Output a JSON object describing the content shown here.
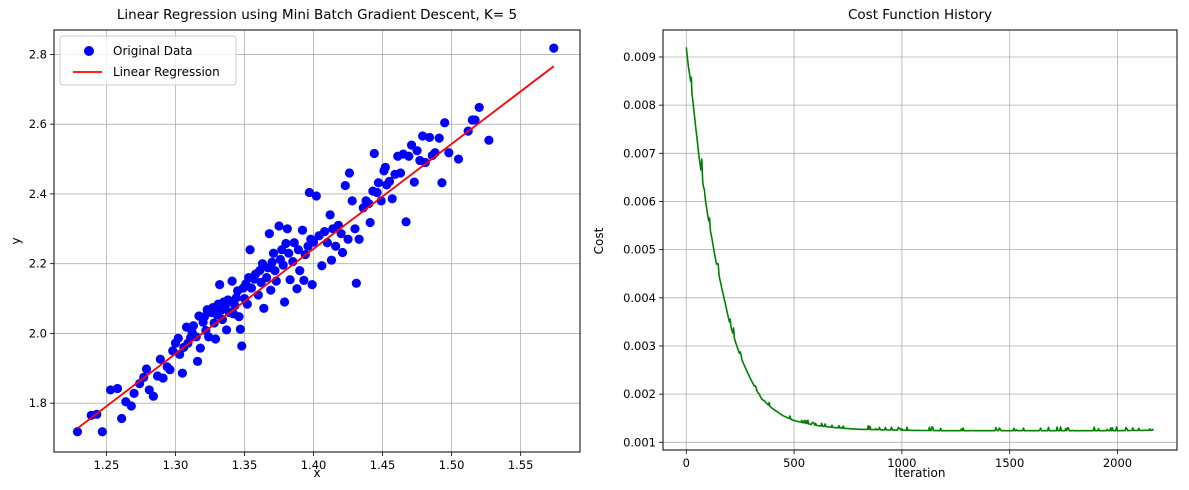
{
  "chart_data": [
    {
      "type": "scatter",
      "title": "Linear Regression using Mini Batch Gradient Descent, K= 5",
      "xlabel": "x",
      "ylabel": "y",
      "xlim": [
        1.212,
        1.593
      ],
      "ylim": [
        1.66,
        2.87
      ],
      "xticks": [
        "1.25",
        "1.30",
        "1.35",
        "1.40",
        "1.45",
        "1.50",
        "1.55"
      ],
      "yticks": [
        "1.8",
        "2.0",
        "2.2",
        "2.4",
        "2.6",
        "2.8"
      ],
      "grid": true,
      "legend_position": "upper left",
      "legend": [
        "Original Data",
        "Linear Regression"
      ],
      "series": [
        {
          "name": "Original Data",
          "kind": "scatter",
          "color": "#0000ff",
          "points": [
            [
              1.229,
              1.718
            ],
            [
              1.247,
              1.718
            ],
            [
              1.243,
              1.768
            ],
            [
              1.239,
              1.765
            ],
            [
              1.253,
              1.838
            ],
            [
              1.258,
              1.842
            ],
            [
              1.261,
              1.756
            ],
            [
              1.264,
              1.804
            ],
            [
              1.268,
              1.792
            ],
            [
              1.27,
              1.828
            ],
            [
              1.274,
              1.856
            ],
            [
              1.277,
              1.874
            ],
            [
              1.279,
              1.898
            ],
            [
              1.281,
              1.838
            ],
            [
              1.284,
              1.82
            ],
            [
              1.287,
              1.878
            ],
            [
              1.289,
              1.926
            ],
            [
              1.291,
              1.872
            ],
            [
              1.294,
              1.904
            ],
            [
              1.296,
              1.896
            ],
            [
              1.298,
              1.95
            ],
            [
              1.3,
              1.972
            ],
            [
              1.302,
              1.986
            ],
            [
              1.303,
              1.94
            ],
            [
              1.305,
              1.886
            ],
            [
              1.306,
              1.96
            ],
            [
              1.308,
              2.018
            ],
            [
              1.309,
              1.972
            ],
            [
              1.311,
              1.988
            ],
            [
              1.312,
              2.004
            ],
            [
              1.313,
              2.022
            ],
            [
              1.315,
              1.99
            ],
            [
              1.316,
              1.92
            ],
            [
              1.317,
              2.05
            ],
            [
              1.318,
              1.958
            ],
            [
              1.32,
              2.032
            ],
            [
              1.321,
              2.048
            ],
            [
              1.322,
              2.008
            ],
            [
              1.323,
              2.068
            ],
            [
              1.324,
              1.99
            ],
            [
              1.326,
              2.06
            ],
            [
              1.327,
              2.074
            ],
            [
              1.328,
              2.03
            ],
            [
              1.329,
              1.984
            ],
            [
              1.33,
              2.054
            ],
            [
              1.331,
              2.084
            ],
            [
              1.332,
              2.14
            ],
            [
              1.333,
              2.066
            ],
            [
              1.334,
              2.04
            ],
            [
              1.335,
              2.09
            ],
            [
              1.336,
              2.078
            ],
            [
              1.337,
              2.01
            ],
            [
              1.338,
              2.096
            ],
            [
              1.339,
              2.06
            ],
            [
              1.34,
              2.092
            ],
            [
              1.341,
              2.15
            ],
            [
              1.342,
              2.056
            ],
            [
              1.343,
              2.08
            ],
            [
              1.344,
              2.102
            ],
            [
              1.345,
              2.122
            ],
            [
              1.346,
              2.048
            ],
            [
              1.347,
              2.012
            ],
            [
              1.348,
              1.964
            ],
            [
              1.349,
              2.13
            ],
            [
              1.35,
              2.1
            ],
            [
              1.351,
              2.142
            ],
            [
              1.352,
              2.084
            ],
            [
              1.353,
              2.16
            ],
            [
              1.354,
              2.24
            ],
            [
              1.355,
              2.13
            ],
            [
              1.357,
              2.156
            ],
            [
              1.358,
              2.17
            ],
            [
              1.36,
              2.11
            ],
            [
              1.361,
              2.18
            ],
            [
              1.362,
              2.146
            ],
            [
              1.363,
              2.2
            ],
            [
              1.364,
              2.072
            ],
            [
              1.366,
              2.16
            ],
            [
              1.367,
              2.188
            ],
            [
              1.368,
              2.286
            ],
            [
              1.369,
              2.124
            ],
            [
              1.37,
              2.204
            ],
            [
              1.371,
              2.23
            ],
            [
              1.372,
              2.18
            ],
            [
              1.373,
              2.15
            ],
            [
              1.375,
              2.308
            ],
            [
              1.376,
              2.212
            ],
            [
              1.377,
              2.24
            ],
            [
              1.378,
              2.196
            ],
            [
              1.379,
              2.09
            ],
            [
              1.38,
              2.258
            ],
            [
              1.381,
              2.3
            ],
            [
              1.382,
              2.23
            ],
            [
              1.383,
              2.154
            ],
            [
              1.385,
              2.206
            ],
            [
              1.386,
              2.26
            ],
            [
              1.388,
              2.128
            ],
            [
              1.389,
              2.24
            ],
            [
              1.39,
              2.18
            ],
            [
              1.392,
              2.296
            ],
            [
              1.393,
              2.152
            ],
            [
              1.394,
              2.226
            ],
            [
              1.396,
              2.25
            ],
            [
              1.397,
              2.404
            ],
            [
              1.398,
              2.27
            ],
            [
              1.399,
              2.14
            ],
            [
              1.4,
              2.262
            ],
            [
              1.402,
              2.394
            ],
            [
              1.404,
              2.28
            ],
            [
              1.406,
              2.194
            ],
            [
              1.408,
              2.292
            ],
            [
              1.41,
              2.26
            ],
            [
              1.412,
              2.34
            ],
            [
              1.413,
              2.21
            ],
            [
              1.414,
              2.3
            ],
            [
              1.416,
              2.25
            ],
            [
              1.418,
              2.31
            ],
            [
              1.42,
              2.286
            ],
            [
              1.421,
              2.232
            ],
            [
              1.423,
              2.424
            ],
            [
              1.425,
              2.27
            ],
            [
              1.426,
              2.46
            ],
            [
              1.428,
              2.38
            ],
            [
              1.43,
              2.3
            ],
            [
              1.431,
              2.144
            ],
            [
              1.433,
              2.27
            ],
            [
              1.436,
              2.36
            ],
            [
              1.438,
              2.38
            ],
            [
              1.44,
              2.372
            ],
            [
              1.441,
              2.318
            ],
            [
              1.443,
              2.408
            ],
            [
              1.444,
              2.516
            ],
            [
              1.446,
              2.404
            ],
            [
              1.447,
              2.432
            ],
            [
              1.449,
              2.38
            ],
            [
              1.451,
              2.466
            ],
            [
              1.452,
              2.476
            ],
            [
              1.453,
              2.426
            ],
            [
              1.455,
              2.436
            ],
            [
              1.457,
              2.386
            ],
            [
              1.459,
              2.456
            ],
            [
              1.461,
              2.508
            ],
            [
              1.463,
              2.46
            ],
            [
              1.465,
              2.514
            ],
            [
              1.467,
              2.32
            ],
            [
              1.469,
              2.508
            ],
            [
              1.471,
              2.54
            ],
            [
              1.473,
              2.434
            ],
            [
              1.475,
              2.524
            ],
            [
              1.477,
              2.496
            ],
            [
              1.479,
              2.566
            ],
            [
              1.481,
              2.49
            ],
            [
              1.484,
              2.562
            ],
            [
              1.486,
              2.51
            ],
            [
              1.488,
              2.518
            ],
            [
              1.491,
              2.56
            ],
            [
              1.493,
              2.432
            ],
            [
              1.495,
              2.604
            ],
            [
              1.498,
              2.518
            ],
            [
              1.505,
              2.5
            ],
            [
              1.512,
              2.58
            ],
            [
              1.515,
              2.612
            ],
            [
              1.517,
              2.612
            ],
            [
              1.52,
              2.648
            ],
            [
              1.527,
              2.554
            ],
            [
              1.574,
              2.818
            ]
          ]
        },
        {
          "name": "Linear Regression",
          "kind": "line",
          "color": "#ff0000",
          "x": [
            1.229,
            1.574
          ],
          "y": [
            1.728,
            2.766
          ]
        }
      ]
    },
    {
      "type": "line",
      "title": "Cost Function History",
      "xlabel": "Iteration",
      "ylabel": "Cost",
      "xlim": [
        -108,
        2276
      ],
      "ylim": [
        0.00084,
        0.00956
      ],
      "xticks": [
        "0",
        "500",
        "1000",
        "1500",
        "2000"
      ],
      "yticks": [
        "0.001",
        "0.002",
        "0.003",
        "0.004",
        "0.005",
        "0.006",
        "0.007",
        "0.008",
        "0.009"
      ],
      "grid": true,
      "series": [
        {
          "name": "Cost",
          "color": "#008000",
          "x": [
            0,
            10,
            20,
            30,
            40,
            50,
            60,
            80,
            100,
            120,
            140,
            160,
            180,
            200,
            250,
            300,
            350,
            400,
            450,
            500,
            600,
            700,
            800,
            1000,
            1200,
            1500,
            1800,
            2000,
            2150,
            2167
          ],
          "y": [
            0.0092,
            0.0088,
            0.0085,
            0.0081,
            0.0077,
            0.0073,
            0.0069,
            0.0063,
            0.0057,
            0.0052,
            0.0047,
            0.0043,
            0.0039,
            0.0035,
            0.0028,
            0.0023,
            0.0019,
            0.0017,
            0.00155,
            0.00145,
            0.00135,
            0.0013,
            0.00127,
            0.00125,
            0.00124,
            0.00124,
            0.00124,
            0.00124,
            0.00125,
            0.00125
          ]
        }
      ]
    }
  ]
}
